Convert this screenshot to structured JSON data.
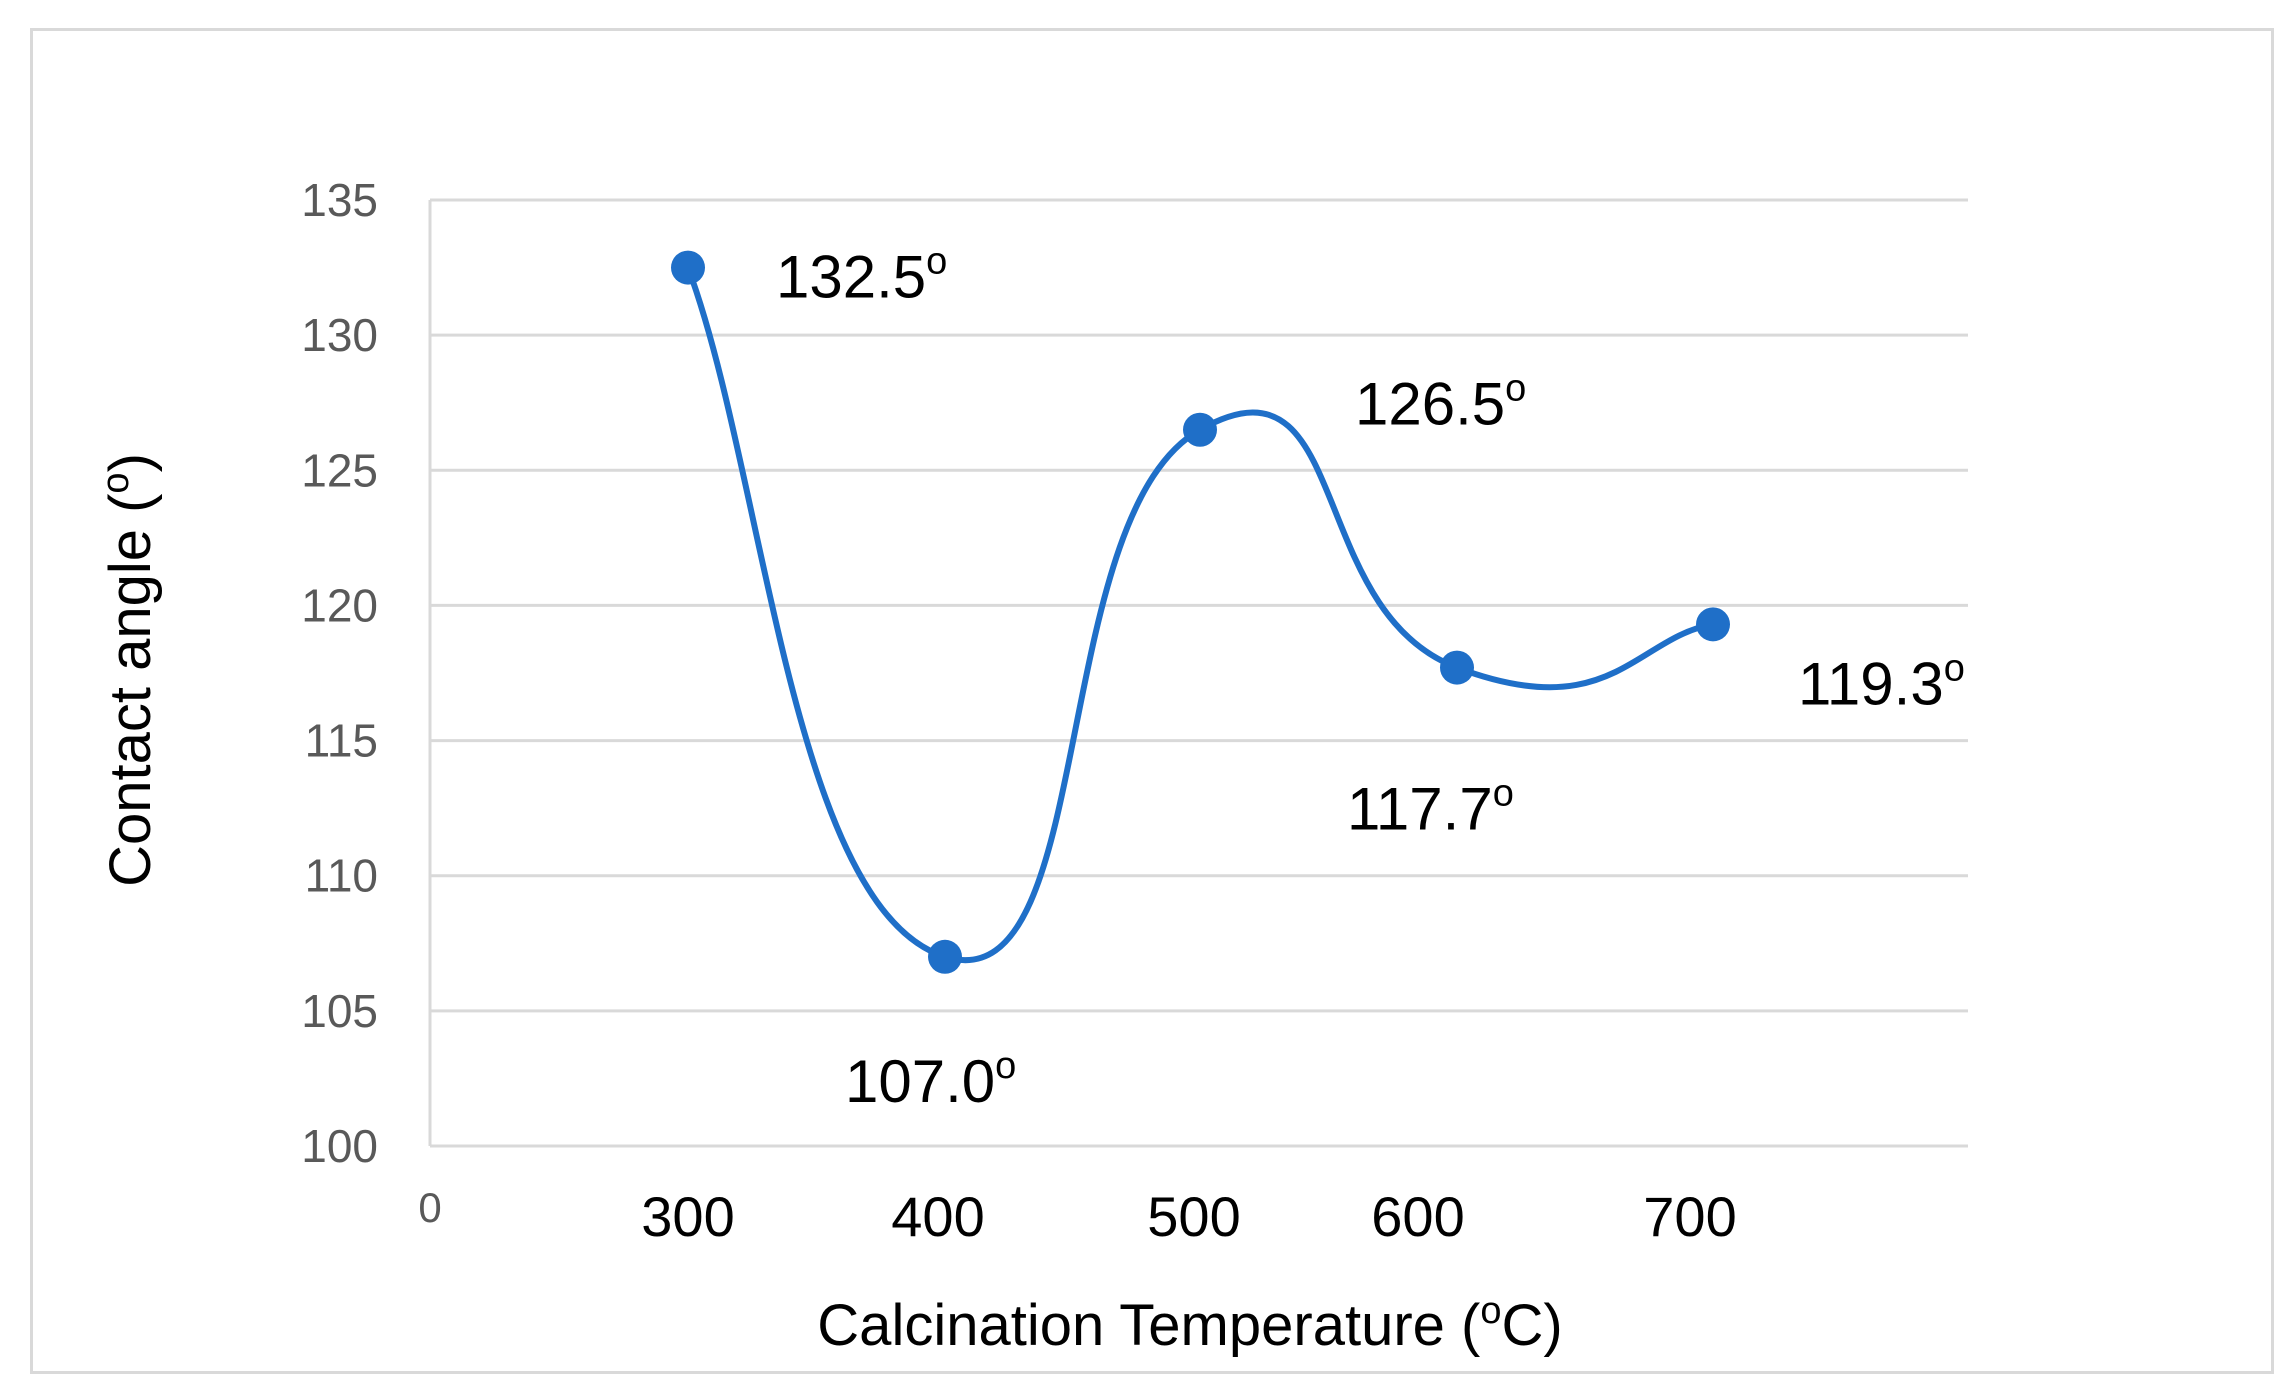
{
  "chart_data": {
    "type": "line",
    "smooth": true,
    "x": [
      300,
      400,
      500,
      600,
      700
    ],
    "x_tick_labels": [
      "0",
      "300",
      "400",
      "500",
      "600",
      "700"
    ],
    "series": [
      {
        "name": "Contact angle",
        "values": [
          132.5,
          107.0,
          126.5,
          117.7,
          119.3
        ],
        "color": "#1f6fc8"
      }
    ],
    "data_labels": [
      "132.5",
      "107.0",
      "126.5",
      "117.7",
      "119.3"
    ],
    "data_label_suffix": "o",
    "xlabel": "Calcination Temperature (",
    "xlabel_sup": "o",
    "xlabel_end": "C)",
    "ylabel": "Contact angle (",
    "ylabel_sup": "o",
    "ylabel_end": ")",
    "ylim": [
      100,
      135
    ],
    "y_ticks": [
      100,
      105,
      110,
      115,
      120,
      125,
      130,
      135
    ],
    "grid": true,
    "gridline_color": "#d9d9d9",
    "axis_color": "#d9d9d9"
  }
}
